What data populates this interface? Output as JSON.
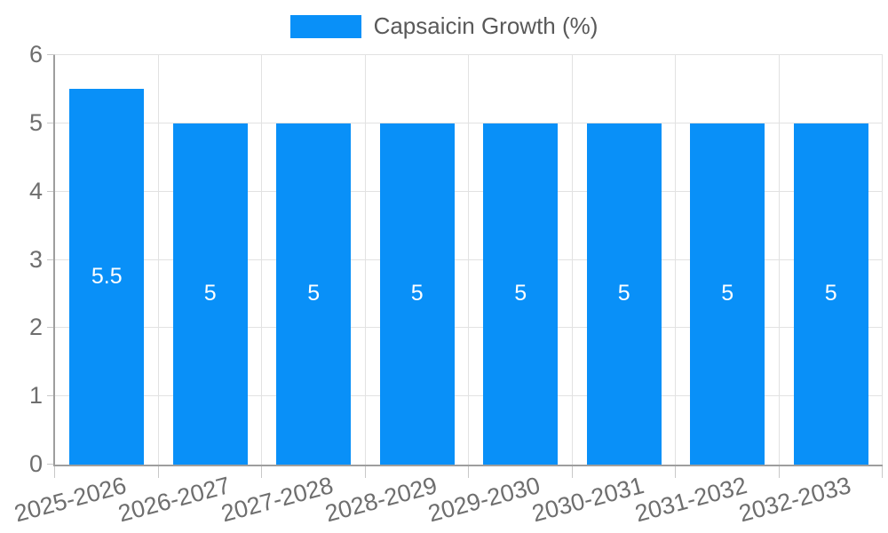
{
  "chart_data": {
    "type": "bar",
    "title": "Capsaicin Growth (%)",
    "legend_position": "top",
    "categories": [
      "2025-2026",
      "2026-2027",
      "2027-2028",
      "2028-2029",
      "2029-2030",
      "2030-2031",
      "2031-2032",
      "2032-2033"
    ],
    "values": [
      5.5,
      5,
      5,
      5,
      5,
      5,
      5,
      5
    ],
    "bar_labels": [
      "5.5",
      "5",
      "5",
      "5",
      "5",
      "5",
      "5",
      "5"
    ],
    "xlabel": "",
    "ylabel": "",
    "ylim": [
      0,
      6
    ],
    "yticks": [
      0,
      1,
      2,
      3,
      4,
      5,
      6
    ],
    "grid": true,
    "colors": {
      "bar": "#0990F8",
      "bar_value_text": "#FFFFFF",
      "gridline": "#E2E2E2",
      "axis_line": "#9E9E9E",
      "tick_mark": "#C8C8C8",
      "tick_text": "#6E6E6E",
      "legend_text": "#595959",
      "background": "#FFFFFF"
    }
  }
}
